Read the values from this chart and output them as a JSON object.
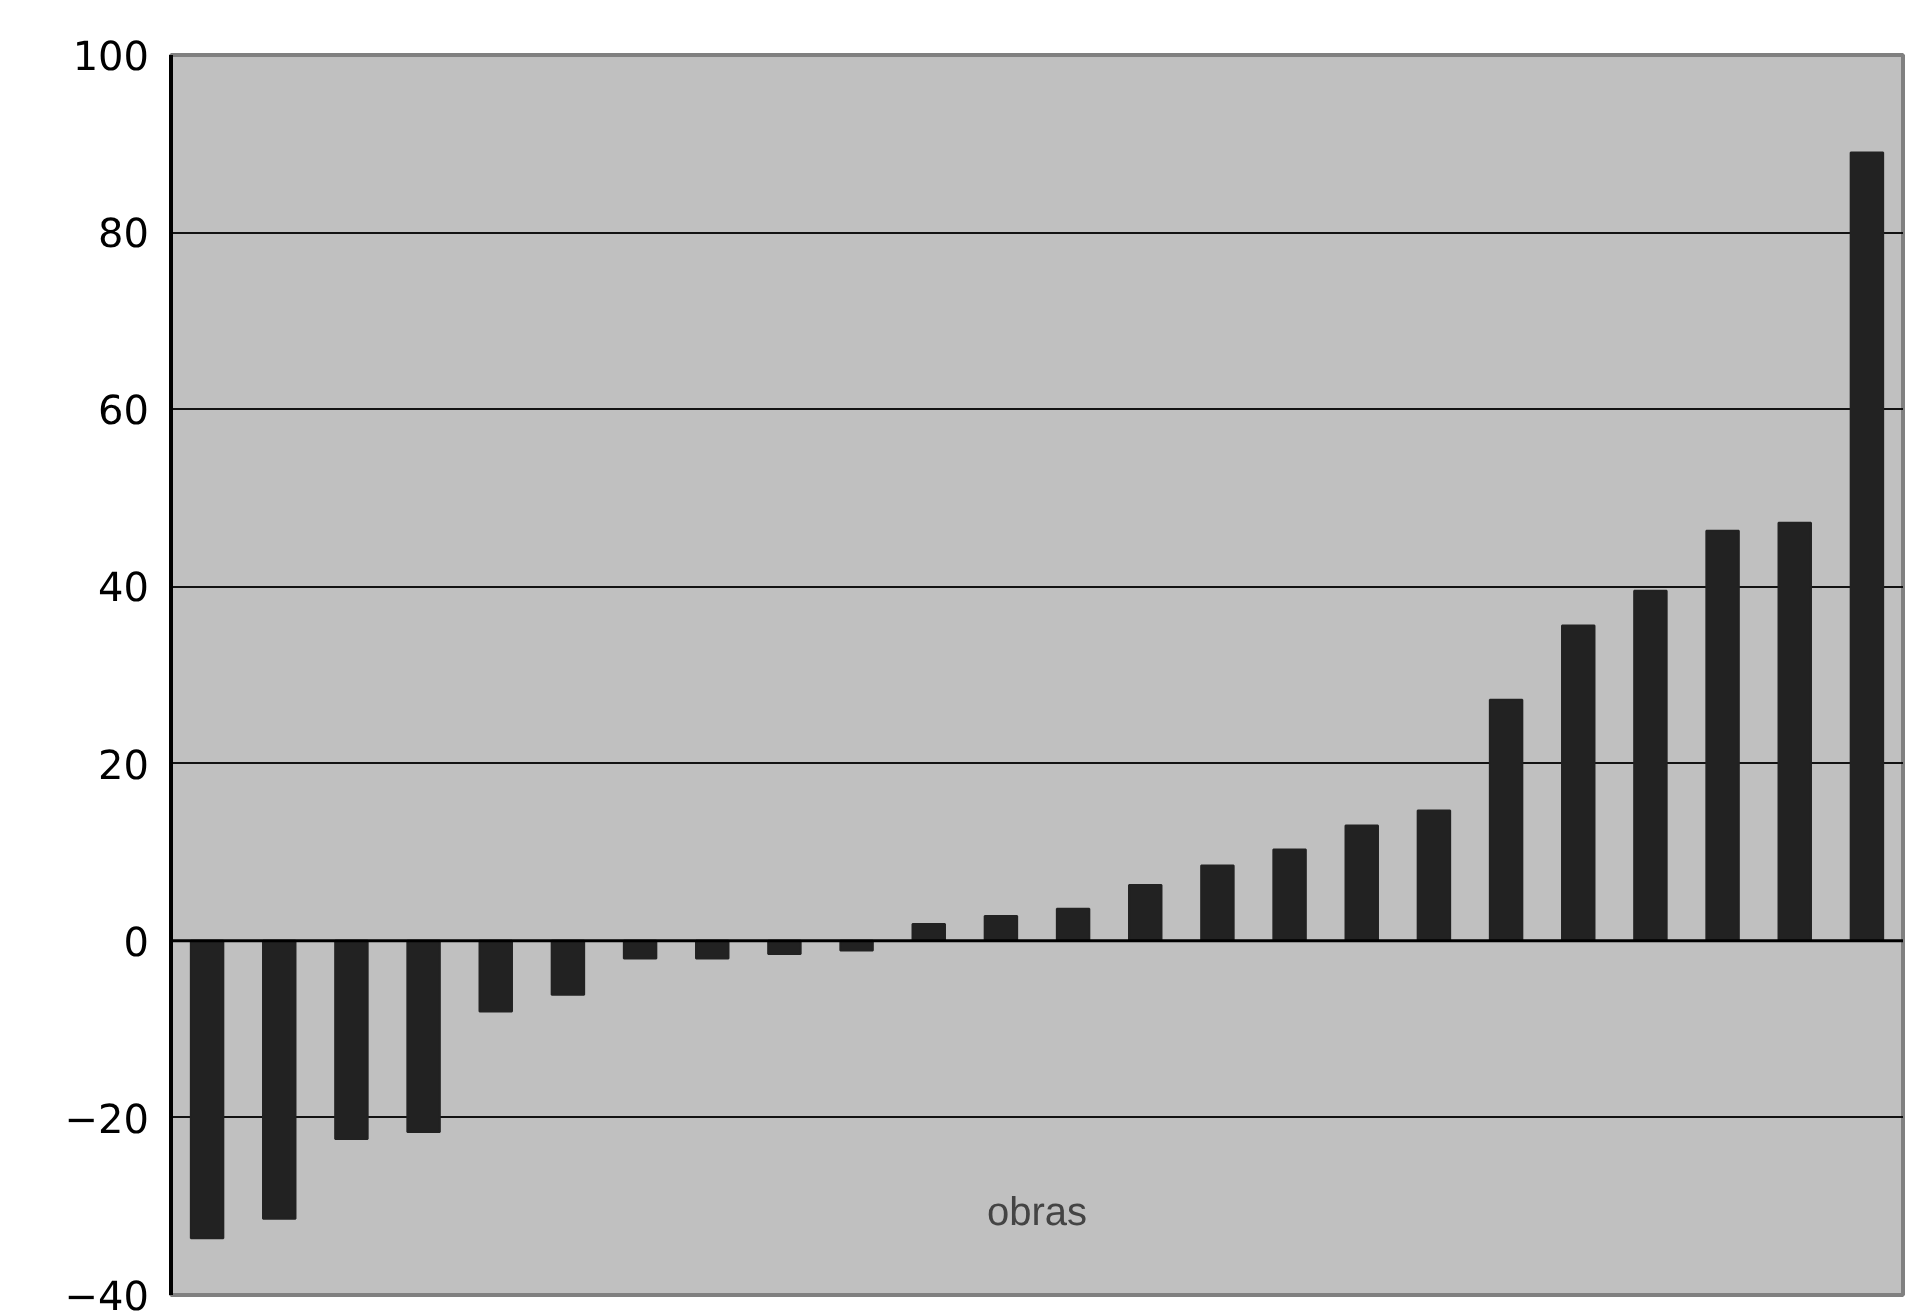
{
  "chart_data": {
    "type": "bar",
    "xlabel": "obras",
    "categories": [
      null,
      null,
      null,
      null,
      null,
      null,
      null,
      null,
      null,
      null,
      null,
      null,
      null,
      null,
      null,
      null,
      null,
      null,
      null,
      null,
      null,
      null,
      null,
      null
    ],
    "values": [
      -33.6,
      -31.4,
      -22.4,
      -21.6,
      -8,
      -6.1,
      -2,
      -2,
      -1.5,
      -1.1,
      1.9,
      2.8,
      3.6,
      6.3,
      8.5,
      10.3,
      13,
      14.7,
      27.2,
      35.6,
      39.5,
      46.3,
      47.2,
      89
    ],
    "color": "#222222",
    "ylim": [
      -40,
      100
    ],
    "yticks": [
      -40,
      -20,
      0,
      20,
      40,
      60,
      80,
      100
    ],
    "grid": "y"
  }
}
